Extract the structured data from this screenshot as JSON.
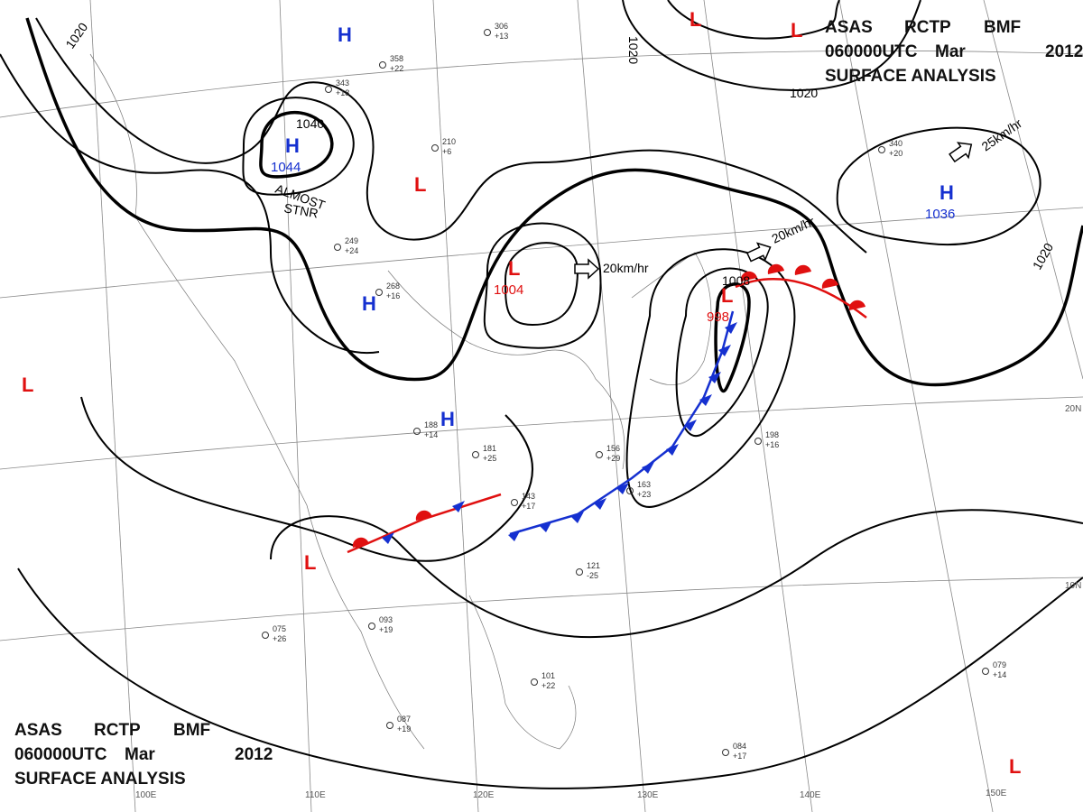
{
  "header": {
    "line1": [
      "ASAS",
      "RCTP",
      "BMF"
    ],
    "line2": [
      "060000UTC",
      "Mar",
      "2012"
    ],
    "line3": "SURFACE ANALYSIS"
  },
  "systems": [
    {
      "type": "H",
      "color": "#1530d0"
    },
    {
      "type": "H",
      "color": "#1530d0",
      "pressure": "1044"
    },
    {
      "type": "H",
      "color": "#1530d0"
    },
    {
      "type": "H",
      "color": "#1530d0"
    },
    {
      "type": "H",
      "color": "#1530d0",
      "pressure": "1036"
    },
    {
      "type": "L",
      "color": "#e01010"
    },
    {
      "type": "L",
      "color": "#e01010"
    },
    {
      "type": "L",
      "color": "#e01010"
    },
    {
      "type": "L",
      "color": "#e01010",
      "pressure": "1004"
    },
    {
      "type": "L",
      "color": "#e01010",
      "pressure": "998"
    },
    {
      "type": "L",
      "color": "#e01010"
    },
    {
      "type": "L",
      "color": "#e01010"
    },
    {
      "type": "L",
      "color": "#e01010"
    }
  ],
  "isobar_labels": [
    "1020",
    "1040",
    "1020",
    "1020",
    "1008",
    "1020"
  ],
  "motion": [
    "ALMOST",
    "STNR",
    "20km/hr",
    "20km/hr",
    "25km/hr"
  ],
  "grid_labels": [
    "20N",
    "10N",
    "100E",
    "110E",
    "120E",
    "130E",
    "140E",
    "150E"
  ],
  "stations": [
    {
      "pressure": "306",
      "temp": "+13"
    },
    {
      "pressure": "358",
      "temp": "+22"
    },
    {
      "pressure": "343",
      "temp": "+18"
    },
    {
      "pressure": "210",
      "temp": "+6"
    },
    {
      "pressure": "249",
      "temp": "+24"
    },
    {
      "pressure": "268",
      "temp": "+16"
    },
    {
      "pressure": "188",
      "temp": "+14"
    },
    {
      "pressure": "181",
      "temp": "+25"
    },
    {
      "pressure": "143",
      "temp": "+17"
    },
    {
      "pressure": "156",
      "temp": "+29"
    },
    {
      "pressure": "163",
      "temp": "+23"
    },
    {
      "pressure": "121",
      "temp": "-25"
    },
    {
      "pressure": "198",
      "temp": "+16"
    },
    {
      "pressure": "340",
      "temp": "+20"
    },
    {
      "pressure": "093",
      "temp": "+19"
    },
    {
      "pressure": "075",
      "temp": "+26"
    },
    {
      "pressure": "101",
      "temp": "+22"
    },
    {
      "pressure": "084",
      "temp": "+17"
    },
    {
      "pressure": "079",
      "temp": "+14"
    },
    {
      "pressure": "087",
      "temp": "+19"
    }
  ]
}
